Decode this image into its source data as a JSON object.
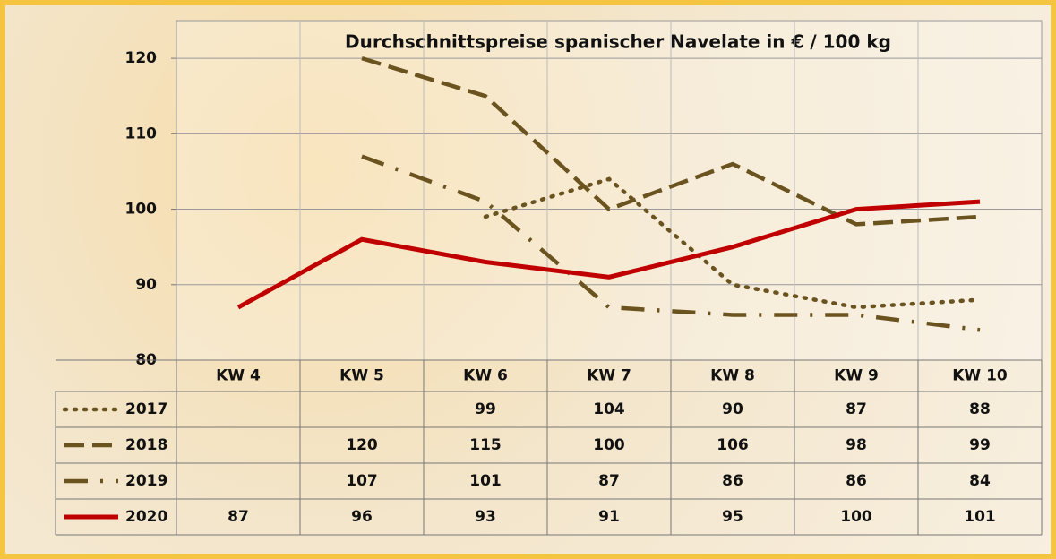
{
  "chart_data": {
    "type": "line",
    "title": "Durchschnittspreise spanischer Navelate in € / 100 kg",
    "categories": [
      "KW 4",
      "KW 5",
      "KW 6",
      "KW 7",
      "KW 8",
      "KW 9",
      "KW 10"
    ],
    "ylim": [
      80,
      125
    ],
    "yticks": [
      80,
      90,
      100,
      110,
      120
    ],
    "grid": true,
    "series": [
      {
        "name": "2017",
        "color": "#6b5320",
        "style": "dotted",
        "values": [
          null,
          null,
          99,
          104,
          90,
          87,
          88
        ]
      },
      {
        "name": "2018",
        "color": "#6b5320",
        "style": "dashed",
        "values": [
          null,
          120,
          115,
          100,
          106,
          98,
          99
        ]
      },
      {
        "name": "2019",
        "color": "#6b5320",
        "style": "dashdot",
        "values": [
          null,
          107,
          101,
          87,
          86,
          86,
          84
        ]
      },
      {
        "name": "2020",
        "color": "#c00000",
        "style": "solid",
        "values": [
          87,
          96,
          93,
          91,
          95,
          100,
          101
        ]
      }
    ]
  }
}
